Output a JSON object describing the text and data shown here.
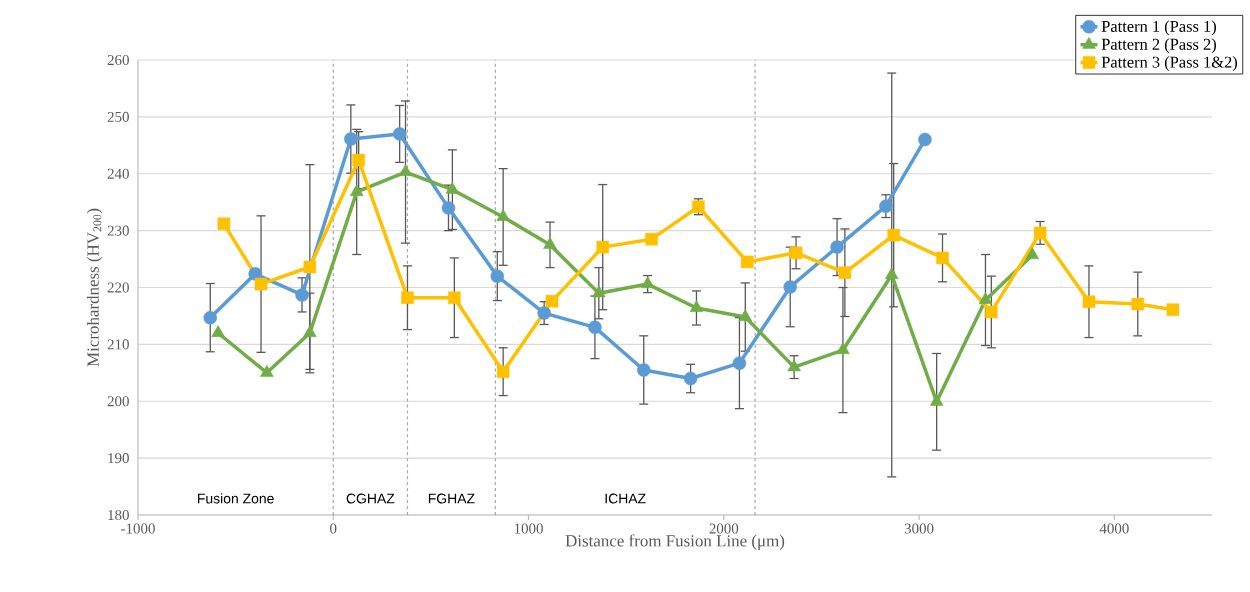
{
  "chart_data": {
    "type": "line",
    "xlabel": "Distance from Fusion Line (μm)",
    "ylabel": "Microhardness (HV$_{200}$)",
    "xlim": [
      -1000,
      4500
    ],
    "ylim": [
      180,
      260
    ],
    "xticks": [
      -1000,
      0,
      1000,
      2000,
      3000,
      4000
    ],
    "yticks": [
      180,
      190,
      200,
      210,
      220,
      230,
      240,
      250,
      260
    ],
    "grid": "y",
    "legend": "top right",
    "line_style": "solid",
    "series": [
      {
        "name": "Pattern 1 (Pass 1)",
        "color": "#5b9bd5",
        "marker": "circle",
        "x": [
          -630,
          -400,
          -160,
          90,
          340,
          590,
          840,
          1080,
          1340,
          1590,
          1830,
          2080,
          2340,
          2580,
          2830,
          3030
        ],
        "values": [
          214.7,
          222.4,
          218.7,
          246.1,
          247,
          234,
          222,
          215.5,
          213,
          205.5,
          204,
          206.7,
          220.1,
          227.1,
          234.3,
          246
        ],
        "errors": [
          6,
          null,
          3,
          6,
          5,
          4,
          4.3,
          2,
          5.5,
          6,
          2.5,
          8,
          7,
          5,
          2,
          null
        ]
      },
      {
        "name": "Pattern 2 (Pass 2)",
        "color": "#70ad47",
        "marker": "triangle",
        "x": [
          -590,
          -340,
          -120,
          120,
          370,
          610,
          870,
          1110,
          1360,
          1610,
          1860,
          2110,
          2360,
          2610,
          2860,
          3090,
          3340,
          3580
        ],
        "values": [
          212,
          205,
          212,
          236.8,
          240.3,
          237.2,
          232.4,
          227.5,
          219,
          220.6,
          216.4,
          214.8,
          206,
          209,
          222.2,
          199.9,
          217.8,
          225.7
        ],
        "errors": [
          null,
          null,
          7,
          11,
          12.5,
          7,
          8.5,
          4,
          4.5,
          1.5,
          3,
          6,
          2,
          11,
          35.5,
          8.5,
          8,
          null
        ]
      },
      {
        "name": "Pattern 3 (Pass 1&2)",
        "color": "#ffc000",
        "marker": "square",
        "x": [
          -560,
          -370,
          -120,
          130,
          380,
          620,
          870,
          1120,
          1380,
          1630,
          1870,
          2120,
          2370,
          2620,
          2870,
          3120,
          3370,
          3620,
          3870,
          4120,
          4300
        ],
        "values": [
          231.2,
          220.6,
          223.6,
          242.4,
          218.2,
          218.2,
          205.2,
          217.6,
          227.1,
          228.5,
          234.2,
          224.5,
          226.1,
          222.6,
          229.2,
          225.2,
          215.7,
          229.6,
          217.5,
          217.1,
          216.1
        ],
        "errors": [
          null,
          12,
          18,
          5,
          5.6,
          7,
          4.2,
          null,
          11,
          null,
          1.4,
          null,
          2.8,
          7.7,
          12.6,
          4.2,
          6.3,
          2,
          6.3,
          5.6,
          null
        ]
      }
    ],
    "ref_lines": [
      {
        "axis": "x",
        "value": 0,
        "color": "#a6a6a6",
        "line_style": "dashed"
      },
      {
        "axis": "x",
        "value": 380,
        "color": "#a6a6a6",
        "line_style": "dashed"
      },
      {
        "axis": "x",
        "value": 830,
        "color": "#a6a6a6",
        "line_style": "dashed"
      },
      {
        "axis": "x",
        "value": 2160,
        "color": "#a6a6a6",
        "line_style": "dashed"
      }
    ],
    "annotations": [
      "Fusion Zone",
      "CGHAZ",
      "FGHAZ",
      "ICHAZ"
    ]
  }
}
